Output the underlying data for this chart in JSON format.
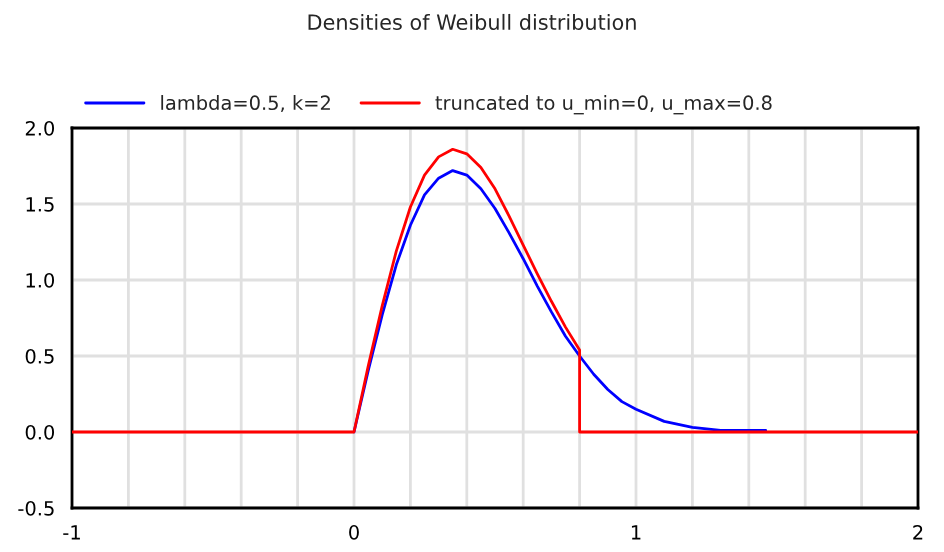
{
  "chart_data": {
    "type": "line",
    "title": "Densities of Weibull distribution",
    "series": [
      {
        "name": "lambda=0.5, k=2",
        "color": "#0000ff",
        "x": [
          0,
          0.05,
          0.1,
          0.15,
          0.2,
          0.25,
          0.3,
          0.35,
          0.4,
          0.45,
          0.5,
          0.55,
          0.6,
          0.65,
          0.7,
          0.75,
          0.8,
          0.85,
          0.9,
          0.95,
          1.0,
          1.1,
          1.2,
          1.3,
          1.4,
          1.46
        ],
        "values": [
          0,
          0.4,
          0.77,
          1.1,
          1.36,
          1.56,
          1.67,
          1.72,
          1.69,
          1.6,
          1.47,
          1.31,
          1.14,
          0.96,
          0.79,
          0.63,
          0.5,
          0.38,
          0.28,
          0.2,
          0.15,
          0.07,
          0.03,
          0.01,
          0.01,
          0.01
        ]
      },
      {
        "name": "truncated to u_min=0, u_max=0.8",
        "color": "#ff0000",
        "x": [
          -1,
          0,
          0.05,
          0.1,
          0.15,
          0.2,
          0.25,
          0.3,
          0.35,
          0.4,
          0.45,
          0.5,
          0.55,
          0.6,
          0.65,
          0.7,
          0.75,
          0.8,
          0.8,
          2
        ],
        "values": [
          0,
          0,
          0.43,
          0.83,
          1.19,
          1.48,
          1.69,
          1.81,
          1.86,
          1.83,
          1.74,
          1.6,
          1.42,
          1.23,
          1.04,
          0.86,
          0.69,
          0.54,
          0,
          0
        ]
      }
    ],
    "xlim": [
      -1,
      2
    ],
    "ylim": [
      -0.5,
      2.0
    ],
    "xticks": [
      -1,
      {
        "value": -0.8,
        "label": null
      },
      {
        "value": -0.6,
        "label": null
      },
      {
        "value": -0.4,
        "label": null
      },
      {
        "value": -0.2,
        "label": null
      },
      0,
      {
        "value": 0.2,
        "label": null
      },
      {
        "value": 0.4,
        "label": null
      },
      {
        "value": 0.6,
        "label": null
      },
      {
        "value": 0.8,
        "label": null
      },
      1,
      {
        "value": 1.2,
        "label": null
      },
      {
        "value": 1.4,
        "label": null
      },
      {
        "value": 1.6,
        "label": null
      },
      {
        "value": 1.8,
        "label": null
      },
      2
    ],
    "yticks": [
      {
        "value": -0.5,
        "label": "-0.5"
      },
      {
        "value": 0.0,
        "label": "0.0"
      },
      {
        "value": 0.5,
        "label": "0.5"
      },
      {
        "value": 1.0,
        "label": "1.0"
      },
      {
        "value": 1.5,
        "label": "1.5"
      },
      {
        "value": 2.0,
        "label": "2.0"
      }
    ],
    "grid": true,
    "legend": "top",
    "marker": "none",
    "line_style": "solid"
  }
}
